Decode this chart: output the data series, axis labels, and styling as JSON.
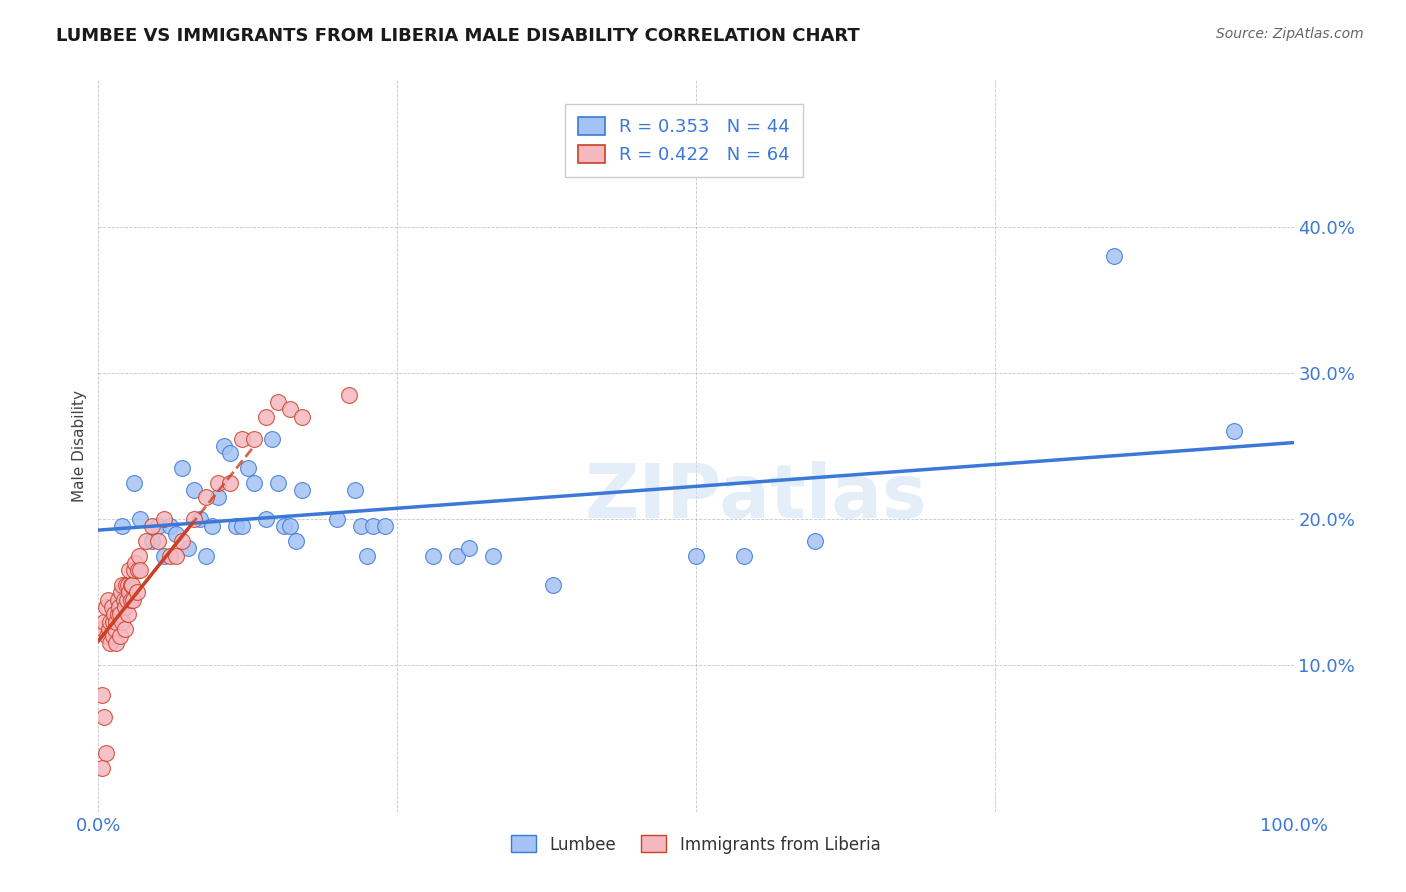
{
  "title": "LUMBEE VS IMMIGRANTS FROM LIBERIA MALE DISABILITY CORRELATION CHART",
  "source": "Source: ZipAtlas.com",
  "ylabel": "Male Disability",
  "xlim": [
    0.0,
    1.0
  ],
  "ylim": [
    0.0,
    0.5
  ],
  "lumbee_R": 0.353,
  "lumbee_N": 44,
  "liberia_R": 0.422,
  "liberia_N": 64,
  "lumbee_color": "#a4c2f4",
  "liberia_color": "#f4b8c1",
  "lumbee_line_color": "#3c78d8",
  "liberia_line_color": "#cc4125",
  "legend_text_color": "#3c78d8",
  "tick_color": "#3c78d8",
  "watermark": "ZIPatlas",
  "lumbee_x": [
    0.02,
    0.03,
    0.035,
    0.045,
    0.05,
    0.055,
    0.06,
    0.065,
    0.07,
    0.075,
    0.08,
    0.085,
    0.09,
    0.095,
    0.1,
    0.105,
    0.11,
    0.115,
    0.12,
    0.125,
    0.13,
    0.14,
    0.145,
    0.15,
    0.155,
    0.16,
    0.165,
    0.17,
    0.2,
    0.215,
    0.22,
    0.225,
    0.23,
    0.24,
    0.28,
    0.3,
    0.31,
    0.33,
    0.38,
    0.5,
    0.54,
    0.6,
    0.85,
    0.95
  ],
  "lumbee_y": [
    0.195,
    0.225,
    0.2,
    0.185,
    0.195,
    0.175,
    0.195,
    0.19,
    0.235,
    0.18,
    0.22,
    0.2,
    0.175,
    0.195,
    0.215,
    0.25,
    0.245,
    0.195,
    0.195,
    0.235,
    0.225,
    0.2,
    0.255,
    0.225,
    0.195,
    0.195,
    0.185,
    0.22,
    0.2,
    0.22,
    0.195,
    0.175,
    0.195,
    0.195,
    0.175,
    0.175,
    0.18,
    0.175,
    0.155,
    0.175,
    0.175,
    0.185,
    0.38,
    0.26
  ],
  "liberia_x": [
    0.004,
    0.005,
    0.006,
    0.007,
    0.008,
    0.009,
    0.01,
    0.01,
    0.011,
    0.012,
    0.012,
    0.013,
    0.014,
    0.015,
    0.015,
    0.016,
    0.016,
    0.017,
    0.018,
    0.018,
    0.019,
    0.02,
    0.02,
    0.021,
    0.022,
    0.022,
    0.023,
    0.024,
    0.025,
    0.025,
    0.026,
    0.026,
    0.027,
    0.027,
    0.028,
    0.029,
    0.03,
    0.031,
    0.032,
    0.033,
    0.034,
    0.035,
    0.04,
    0.045,
    0.05,
    0.055,
    0.06,
    0.065,
    0.07,
    0.08,
    0.09,
    0.1,
    0.11,
    0.12,
    0.13,
    0.14,
    0.15,
    0.16,
    0.17,
    0.21,
    0.003,
    0.005,
    0.006,
    0.003
  ],
  "liberia_y": [
    0.125,
    0.13,
    0.14,
    0.12,
    0.145,
    0.125,
    0.13,
    0.115,
    0.14,
    0.13,
    0.12,
    0.135,
    0.125,
    0.115,
    0.13,
    0.135,
    0.145,
    0.14,
    0.12,
    0.135,
    0.15,
    0.155,
    0.13,
    0.145,
    0.14,
    0.125,
    0.155,
    0.145,
    0.135,
    0.155,
    0.165,
    0.15,
    0.155,
    0.145,
    0.155,
    0.145,
    0.165,
    0.17,
    0.15,
    0.165,
    0.175,
    0.165,
    0.185,
    0.195,
    0.185,
    0.2,
    0.175,
    0.175,
    0.185,
    0.2,
    0.215,
    0.225,
    0.225,
    0.255,
    0.255,
    0.27,
    0.28,
    0.275,
    0.27,
    0.285,
    0.08,
    0.065,
    0.04,
    0.03
  ]
}
